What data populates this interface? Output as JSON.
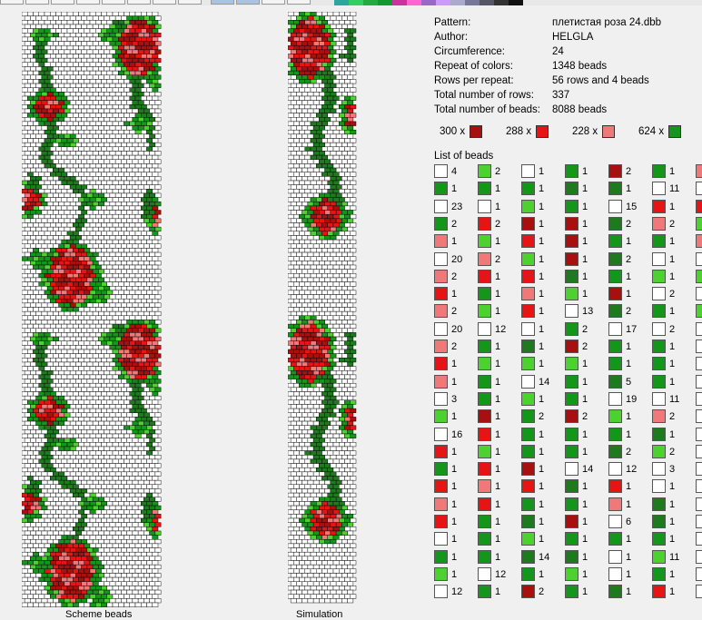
{
  "toolbar": {
    "palette": [
      "#2aa8a0",
      "#33cc66",
      "#22aa44",
      "#119933",
      "#cc3399",
      "#ff66cc",
      "#9966cc",
      "#cc99ff",
      "#aaaacc",
      "#777799",
      "#555566",
      "#333333",
      "#111111"
    ]
  },
  "colors": {
    "white": "#ffffff",
    "dark_green": "#1f7a1f",
    "green": "#14961a",
    "light_green": "#4cd22e",
    "dark_red": "#a81010",
    "red": "#e61414",
    "pink": "#f07878"
  },
  "info": {
    "rows": [
      {
        "label": "Pattern:",
        "value": "плетистая роза 24.dbb"
      },
      {
        "label": "Author:",
        "value": "HELGLA"
      },
      {
        "label": "Circumference:",
        "value": "24"
      },
      {
        "label": "Repeat of colors:",
        "value": "1348 beads"
      },
      {
        "label": "Rows per repeat:",
        "value": "56 rows and 4 beads"
      },
      {
        "label": "Total number of rows:",
        "value": "337"
      },
      {
        "label": "Total number of beads:",
        "value": "8088 beads"
      }
    ]
  },
  "totals": [
    {
      "label": "300 x",
      "color": "#a81010"
    },
    {
      "label": "288 x",
      "color": "#e61414"
    },
    {
      "label": "228 x",
      "color": "#f07878"
    },
    {
      "label": "624 x",
      "color": "#14961a"
    }
  ],
  "bead_list": {
    "label": "List of beads",
    "columns": [
      [
        [
          "white",
          "4"
        ],
        [
          "green",
          "1"
        ],
        [
          "white",
          "23"
        ],
        [
          "green",
          "2"
        ],
        [
          "pink",
          "1"
        ],
        [
          "white",
          "20"
        ],
        [
          "pink",
          "2"
        ],
        [
          "red",
          "1"
        ],
        [
          "pink",
          "2"
        ],
        [
          "white",
          "20"
        ],
        [
          "pink",
          "2"
        ],
        [
          "red",
          "1"
        ],
        [
          "pink",
          "1"
        ],
        [
          "white",
          "3"
        ],
        [
          "light_green",
          "1"
        ],
        [
          "white",
          "16"
        ],
        [
          "red",
          "1"
        ],
        [
          "green",
          "1"
        ],
        [
          "red",
          "1"
        ],
        [
          "pink",
          "1"
        ],
        [
          "red",
          "1"
        ],
        [
          "white",
          "1"
        ],
        [
          "green",
          "1"
        ],
        [
          "light_green",
          "1"
        ],
        [
          "white",
          "12"
        ]
      ],
      [
        [
          "light_green",
          "2"
        ],
        [
          "green",
          "1"
        ],
        [
          "white",
          "1"
        ],
        [
          "red",
          "2"
        ],
        [
          "light_green",
          "1"
        ],
        [
          "pink",
          "2"
        ],
        [
          "red",
          "1"
        ],
        [
          "green",
          "1"
        ],
        [
          "light_green",
          "1"
        ],
        [
          "white",
          "12"
        ],
        [
          "green",
          "1"
        ],
        [
          "light_green",
          "1"
        ],
        [
          "green",
          "1"
        ],
        [
          "green",
          "1"
        ],
        [
          "dark_red",
          "1"
        ],
        [
          "red",
          "1"
        ],
        [
          "light_green",
          "1"
        ],
        [
          "red",
          "1"
        ],
        [
          "pink",
          "1"
        ],
        [
          "red",
          "1"
        ],
        [
          "green",
          "1"
        ],
        [
          "green",
          "1"
        ],
        [
          "green",
          "1"
        ],
        [
          "white",
          "12"
        ],
        [
          "green",
          "1"
        ]
      ],
      [
        [
          "white",
          "1"
        ],
        [
          "green",
          "1"
        ],
        [
          "light_green",
          "1"
        ],
        [
          "dark_red",
          "1"
        ],
        [
          "red",
          "1"
        ],
        [
          "light_green",
          "1"
        ],
        [
          "red",
          "1"
        ],
        [
          "pink",
          "1"
        ],
        [
          "red",
          "1"
        ],
        [
          "white",
          "1"
        ],
        [
          "dark_green",
          "1"
        ],
        [
          "light_green",
          "1"
        ],
        [
          "white",
          "14"
        ],
        [
          "light_green",
          "1"
        ],
        [
          "green",
          "2"
        ],
        [
          "green",
          "1"
        ],
        [
          "green",
          "1"
        ],
        [
          "dark_red",
          "1"
        ],
        [
          "red",
          "1"
        ],
        [
          "green",
          "1"
        ],
        [
          "dark_green",
          "1"
        ],
        [
          "light_green",
          "1"
        ],
        [
          "dark_green",
          "14"
        ],
        [
          "green",
          "1"
        ],
        [
          "dark_red",
          "2"
        ]
      ],
      [
        [
          "green",
          "1"
        ],
        [
          "dark_green",
          "1"
        ],
        [
          "green",
          "1"
        ],
        [
          "dark_red",
          "1"
        ],
        [
          "dark_red",
          "1"
        ],
        [
          "dark_red",
          "1"
        ],
        [
          "dark_green",
          "1"
        ],
        [
          "light_green",
          "1"
        ],
        [
          "white",
          "13"
        ],
        [
          "green",
          "2"
        ],
        [
          "dark_red",
          "2"
        ],
        [
          "light_green",
          "1"
        ],
        [
          "green",
          "1"
        ],
        [
          "green",
          "1"
        ],
        [
          "dark_red",
          "2"
        ],
        [
          "green",
          "1"
        ],
        [
          "green",
          "1"
        ],
        [
          "white",
          "14"
        ],
        [
          "dark_green",
          "1"
        ],
        [
          "green",
          "1"
        ],
        [
          "dark_red",
          "1"
        ],
        [
          "green",
          "1"
        ],
        [
          "dark_green",
          "1"
        ],
        [
          "light_green",
          "1"
        ],
        [
          "green",
          "1"
        ]
      ],
      [
        [
          "dark_red",
          "2"
        ],
        [
          "dark_green",
          "1"
        ],
        [
          "white",
          "15"
        ],
        [
          "dark_green",
          "2"
        ],
        [
          "green",
          "1"
        ],
        [
          "dark_green",
          "2"
        ],
        [
          "green",
          "1"
        ],
        [
          "dark_red",
          "1"
        ],
        [
          "dark_green",
          "2"
        ],
        [
          "white",
          "17"
        ],
        [
          "green",
          "1"
        ],
        [
          "green",
          "1"
        ],
        [
          "dark_green",
          "5"
        ],
        [
          "white",
          "19"
        ],
        [
          "light_green",
          "1"
        ],
        [
          "green",
          "1"
        ],
        [
          "dark_green",
          "2"
        ],
        [
          "white",
          "12"
        ],
        [
          "red",
          "1"
        ],
        [
          "pink",
          "1"
        ],
        [
          "white",
          "6"
        ],
        [
          "green",
          "1"
        ],
        [
          "white",
          "1"
        ],
        [
          "white",
          "1"
        ],
        [
          "dark_green",
          "1"
        ]
      ],
      [
        [
          "green",
          "1"
        ],
        [
          "white",
          "11"
        ],
        [
          "red",
          "1"
        ],
        [
          "pink",
          "2"
        ],
        [
          "green",
          "1"
        ],
        [
          "white",
          "1"
        ],
        [
          "light_green",
          "1"
        ],
        [
          "white",
          "2"
        ],
        [
          "green",
          "1"
        ],
        [
          "white",
          "2"
        ],
        [
          "green",
          "1"
        ],
        [
          "green",
          "1"
        ],
        [
          "green",
          "1"
        ],
        [
          "white",
          "11"
        ],
        [
          "pink",
          "2"
        ],
        [
          "dark_green",
          "1"
        ],
        [
          "light_green",
          "2"
        ],
        [
          "white",
          "3"
        ],
        [
          "white",
          "1"
        ],
        [
          "dark_green",
          "1"
        ],
        [
          "dark_green",
          "1"
        ],
        [
          "green",
          "1"
        ],
        [
          "light_green",
          "11"
        ],
        [
          "green",
          "1"
        ],
        [
          "red",
          "1"
        ]
      ],
      [
        [
          "pink",
          ""
        ],
        [
          "white",
          ""
        ],
        [
          "red",
          ""
        ],
        [
          "light_green",
          ""
        ],
        [
          "pink",
          ""
        ],
        [
          "white",
          ""
        ],
        [
          "light_green",
          ""
        ],
        [
          "white",
          ""
        ],
        [
          "light_green",
          ""
        ],
        [
          "white",
          ""
        ],
        [
          "white",
          ""
        ],
        [
          "white",
          ""
        ],
        [
          "white",
          ""
        ],
        [
          "white",
          ""
        ],
        [
          "white",
          ""
        ],
        [
          "white",
          ""
        ],
        [
          "white",
          ""
        ],
        [
          "white",
          ""
        ],
        [
          "white",
          ""
        ],
        [
          "white",
          ""
        ],
        [
          "white",
          ""
        ],
        [
          "white",
          ""
        ],
        [
          "white",
          ""
        ],
        [
          "white",
          ""
        ],
        [
          "white",
          ""
        ]
      ]
    ]
  },
  "labels": {
    "scheme": "Scheme beads",
    "simulation": "Simulation"
  }
}
